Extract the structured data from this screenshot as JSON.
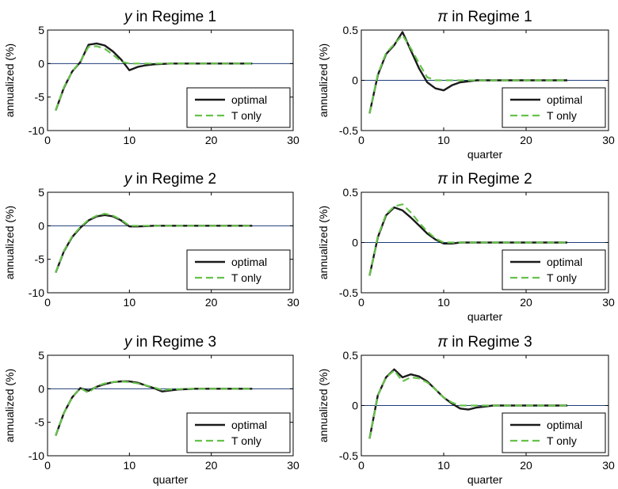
{
  "figure": {
    "legend_labels": {
      "optimal": "optimal",
      "t_only": "T only"
    },
    "colors": {
      "optimal": "#1a1a1a",
      "t_only": "#66c24a",
      "zero_line": "#1f3d7a",
      "axes": "#000000"
    }
  },
  "chart_data": [
    {
      "type": "line",
      "title": "y in Regime 1",
      "title_var": "y",
      "title_rest": " in Regime 1",
      "xlabel": "",
      "ylabel": "annualized (%)",
      "xlim": [
        0,
        30
      ],
      "ylim": [
        -10,
        5
      ],
      "xticks": [
        0,
        10,
        20,
        30
      ],
      "yticks": [
        -10,
        -5,
        0,
        5
      ],
      "xtick_labels": [
        "0",
        "10",
        "20",
        "30"
      ],
      "ytick_labels": [
        "-10",
        "-5",
        "0",
        "5"
      ],
      "legend": "lower-right",
      "x": [
        1,
        2,
        3,
        4,
        5,
        6,
        7,
        8,
        9,
        10,
        11,
        12,
        13,
        14,
        15,
        16,
        17,
        18,
        19,
        20,
        21,
        22,
        23,
        24,
        25
      ],
      "series": [
        {
          "name": "optimal",
          "values": [
            -7,
            -3.6,
            -1.2,
            0.2,
            2.8,
            3.0,
            2.7,
            1.8,
            0.6,
            -1.0,
            -0.5,
            -0.25,
            -0.12,
            -0.05,
            0,
            0,
            0,
            0,
            0,
            0,
            0,
            0,
            0,
            0,
            0
          ]
        },
        {
          "name": "T only",
          "values": [
            -7,
            -3.5,
            -1.2,
            0.3,
            2.5,
            2.6,
            2.2,
            1.3,
            0.3,
            0,
            0,
            0,
            0,
            0,
            0,
            0,
            0,
            0,
            0,
            0,
            0,
            0,
            0,
            0,
            0
          ]
        }
      ]
    },
    {
      "type": "line",
      "title": "π in Regime 1",
      "title_var": "π",
      "title_rest": " in Regime 1",
      "xlabel": "quarter",
      "ylabel": "annualized (%)",
      "xlim": [
        0,
        30
      ],
      "ylim": [
        -0.5,
        0.5
      ],
      "xticks": [
        0,
        10,
        20,
        30
      ],
      "yticks": [
        -0.5,
        0,
        0.5
      ],
      "xtick_labels": [
        "0",
        "10",
        "20",
        "30"
      ],
      "ytick_labels": [
        "-0.5",
        "0",
        "0.5"
      ],
      "legend": "lower-right",
      "x": [
        1,
        2,
        3,
        4,
        5,
        6,
        7,
        8,
        9,
        10,
        11,
        12,
        13,
        14,
        15,
        16,
        17,
        18,
        19,
        20,
        21,
        22,
        23,
        24,
        25
      ],
      "series": [
        {
          "name": "optimal",
          "values": [
            -0.33,
            0.05,
            0.26,
            0.35,
            0.48,
            0.3,
            0.12,
            -0.02,
            -0.08,
            -0.1,
            -0.05,
            -0.02,
            -0.01,
            0,
            0,
            0,
            0,
            0,
            0,
            0,
            0,
            0,
            0,
            0,
            0
          ]
        },
        {
          "name": "T only",
          "values": [
            -0.33,
            0.06,
            0.27,
            0.36,
            0.45,
            0.32,
            0.17,
            0.03,
            0,
            0,
            0,
            0,
            0,
            0,
            0,
            0,
            0,
            0,
            0,
            0,
            0,
            0,
            0,
            0,
            0
          ]
        }
      ]
    },
    {
      "type": "line",
      "title": "y in Regime 2",
      "title_var": "y",
      "title_rest": " in Regime 2",
      "xlabel": "",
      "ylabel": "annualized (%)",
      "xlim": [
        0,
        30
      ],
      "ylim": [
        -10,
        5
      ],
      "xticks": [
        0,
        10,
        20,
        30
      ],
      "yticks": [
        -10,
        -5,
        0,
        5
      ],
      "xtick_labels": [
        "0",
        "10",
        "20",
        "30"
      ],
      "ytick_labels": [
        "-10",
        "-5",
        "0",
        "5"
      ],
      "legend": "lower-right",
      "x": [
        1,
        2,
        3,
        4,
        5,
        6,
        7,
        8,
        9,
        10,
        11,
        12,
        13,
        14,
        15,
        16,
        17,
        18,
        19,
        20,
        21,
        22,
        23,
        24,
        25
      ],
      "series": [
        {
          "name": "optimal",
          "values": [
            -7,
            -3.8,
            -1.7,
            -0.3,
            0.8,
            1.4,
            1.6,
            1.4,
            0.8,
            -0.1,
            -0.1,
            -0.05,
            0,
            0,
            0,
            0,
            0,
            0,
            0,
            0,
            0,
            0,
            0,
            0,
            0
          ]
        },
        {
          "name": "T only",
          "values": [
            -7,
            -3.7,
            -1.6,
            -0.2,
            0.9,
            1.5,
            1.8,
            1.5,
            0.9,
            0,
            0,
            0,
            0,
            0,
            0,
            0,
            0,
            0,
            0,
            0,
            0,
            0,
            0,
            0,
            0
          ]
        }
      ]
    },
    {
      "type": "line",
      "title": "π in Regime 2",
      "title_var": "π",
      "title_rest": " in Regime 2",
      "xlabel": "quarter",
      "ylabel": "annualized (%)",
      "xlim": [
        0,
        30
      ],
      "ylim": [
        -0.5,
        0.5
      ],
      "xticks": [
        0,
        10,
        20,
        30
      ],
      "yticks": [
        -0.5,
        0,
        0.5
      ],
      "xtick_labels": [
        "0",
        "10",
        "20",
        "30"
      ],
      "ytick_labels": [
        "-0.5",
        "0",
        "0.5"
      ],
      "legend": "lower-right",
      "x": [
        1,
        2,
        3,
        4,
        5,
        6,
        7,
        8,
        9,
        10,
        11,
        12,
        13,
        14,
        15,
        16,
        17,
        18,
        19,
        20,
        21,
        22,
        23,
        24,
        25
      ],
      "series": [
        {
          "name": "optimal",
          "values": [
            -0.33,
            0.05,
            0.27,
            0.35,
            0.32,
            0.25,
            0.17,
            0.09,
            0.03,
            -0.01,
            -0.01,
            0,
            0,
            0,
            0,
            0,
            0,
            0,
            0,
            0,
            0,
            0,
            0,
            0,
            0
          ]
        },
        {
          "name": "T only",
          "values": [
            -0.33,
            0.06,
            0.28,
            0.36,
            0.38,
            0.3,
            0.2,
            0.11,
            0.04,
            0,
            0,
            0,
            0,
            0,
            0,
            0,
            0,
            0,
            0,
            0,
            0,
            0,
            0,
            0,
            0
          ]
        }
      ]
    },
    {
      "type": "line",
      "title": "y in Regime 3",
      "title_var": "y",
      "title_rest": " in Regime 3",
      "xlabel": "quarter",
      "ylabel": "annualized (%)",
      "xlim": [
        0,
        30
      ],
      "ylim": [
        -10,
        5
      ],
      "xticks": [
        0,
        10,
        20,
        30
      ],
      "yticks": [
        -10,
        -5,
        0,
        5
      ],
      "xtick_labels": [
        "0",
        "10",
        "20",
        "30"
      ],
      "ytick_labels": [
        "-10",
        "-5",
        "0",
        "5"
      ],
      "legend": "lower-right",
      "x": [
        1,
        2,
        3,
        4,
        5,
        6,
        7,
        8,
        9,
        10,
        11,
        12,
        13,
        14,
        15,
        16,
        17,
        18,
        19,
        20,
        21,
        22,
        23,
        24,
        25
      ],
      "series": [
        {
          "name": "optimal",
          "values": [
            -7,
            -3.6,
            -1.3,
            0.1,
            -0.3,
            0.3,
            0.7,
            1.0,
            1.1,
            1.1,
            0.9,
            0.5,
            0.1,
            -0.4,
            -0.25,
            -0.1,
            -0.05,
            0,
            0,
            0,
            0,
            0,
            0,
            0,
            0
          ]
        },
        {
          "name": "T only",
          "values": [
            -7,
            -3.6,
            -1.3,
            0.1,
            -0.6,
            0.4,
            0.8,
            1.0,
            1.1,
            1.0,
            0.8,
            0.5,
            0.2,
            -0.2,
            -0.1,
            -0.05,
            0,
            0,
            0,
            0,
            0,
            0,
            0,
            0,
            0
          ]
        }
      ]
    },
    {
      "type": "line",
      "title": "π in Regime 3",
      "title_var": "π",
      "title_rest": " in Regime 3",
      "xlabel": "quarter",
      "ylabel": "annualized (%)",
      "xlim": [
        0,
        30
      ],
      "ylim": [
        -0.5,
        0.5
      ],
      "xticks": [
        0,
        10,
        20,
        30
      ],
      "yticks": [
        -0.5,
        0,
        0.5
      ],
      "xtick_labels": [
        "0",
        "10",
        "20",
        "30"
      ],
      "ytick_labels": [
        "-0.5",
        "0",
        "0.5"
      ],
      "legend": "lower-right",
      "x": [
        1,
        2,
        3,
        4,
        5,
        6,
        7,
        8,
        9,
        10,
        11,
        12,
        13,
        14,
        15,
        16,
        17,
        18,
        19,
        20,
        21,
        22,
        23,
        24,
        25
      ],
      "series": [
        {
          "name": "optimal",
          "values": [
            -0.33,
            0.1,
            0.28,
            0.36,
            0.28,
            0.31,
            0.29,
            0.24,
            0.16,
            0.08,
            0.02,
            -0.03,
            -0.04,
            -0.02,
            -0.01,
            0,
            0,
            0,
            0,
            0,
            0,
            0,
            0,
            0,
            0
          ]
        },
        {
          "name": "T only",
          "values": [
            -0.33,
            0.1,
            0.28,
            0.35,
            0.24,
            0.28,
            0.27,
            0.23,
            0.16,
            0.08,
            0.03,
            0,
            0,
            0,
            0,
            0,
            0,
            0,
            0,
            0,
            0,
            0,
            0,
            0,
            0
          ]
        }
      ]
    }
  ]
}
